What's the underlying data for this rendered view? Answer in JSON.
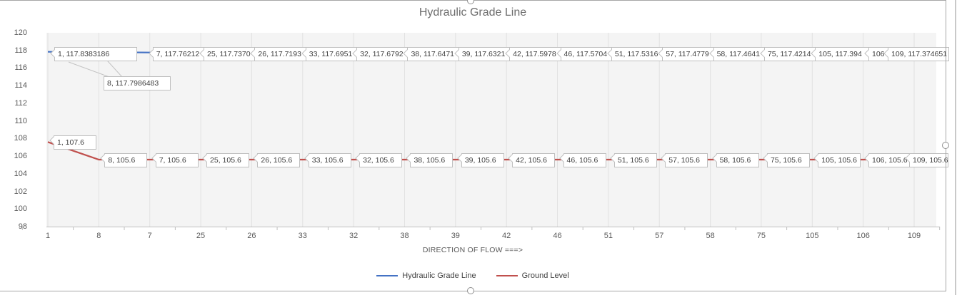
{
  "ui": {
    "selection_handles": [
      "top-center",
      "right-middle",
      "bottom-center"
    ],
    "state": "chart-object-selected"
  },
  "colors": {
    "chart_border": "#a6a6a6",
    "pane_divider": "#c9c9c9",
    "plot_fill": "#f4f4f4",
    "grid": "#e1e1e1",
    "axis": "#bfbfbf",
    "label_border": "#bfbfbf",
    "label_text": "#404040",
    "tick_text": "#595959",
    "title_text": "#6d6d6d",
    "leader": "#c4c4c4",
    "series_blue": "#4472c4",
    "series_red": "#c0504d"
  },
  "chart_data": {
    "type": "line",
    "title": "Hydraulic Grade Line",
    "xlabel": "DIRECTION OF FLOW ===>",
    "ylabel": "",
    "ylim": [
      98,
      120
    ],
    "ytick_step": 2,
    "grid": "vertical",
    "legend_position": "bottom",
    "categories": [
      "1",
      "8",
      "7",
      "25",
      "26",
      "33",
      "32",
      "38",
      "39",
      "42",
      "46",
      "51",
      "57",
      "58",
      "75",
      "105",
      "106",
      "109"
    ],
    "series": [
      {
        "name": "Hydraulic Grade Line",
        "color": "#4472c4",
        "values": [
          117.8383186,
          117.7986483,
          117.76212,
          117.737,
          117.7193,
          117.6951,
          117.6792,
          117.6471,
          117.6321,
          117.5978,
          117.5704,
          117.5316,
          117.4779,
          117.4641,
          117.4214,
          117.394,
          117.384,
          117.374651
        ],
        "data_labels": [
          "1, 117.8383186",
          "8, 117.7986483",
          "7, 117.76212",
          "25, 117.7370",
          "26, 117.7193",
          "33, 117.6951",
          "32, 117.6792",
          "38, 117.6471",
          "39, 117.6321",
          "42, 117.5978",
          "46, 117.5704",
          "51, 117.5316",
          "57, 117.4779",
          "58, 117.4641",
          "75, 117.4214",
          "105, 117.394",
          "106",
          "109, 117.374651"
        ]
      },
      {
        "name": "Ground Level",
        "color": "#c0504d",
        "values": [
          107.6,
          105.6,
          105.6,
          105.6,
          105.6,
          105.6,
          105.6,
          105.6,
          105.6,
          105.6,
          105.6,
          105.6,
          105.6,
          105.6,
          105.6,
          105.6,
          105.6,
          105.6
        ],
        "data_labels": [
          "1, 107.6",
          "8, 105.6",
          "7, 105.6",
          "25, 105.6",
          "26, 105.6",
          "33, 105.6",
          "32, 105.6",
          "38, 105.6",
          "39, 105.6",
          "42, 105.6",
          "46, 105.6",
          "51, 105.6",
          "57, 105.6",
          "58, 105.6",
          "75, 105.6",
          "105, 105.6",
          "106, 105.6",
          "109, 105.6"
        ]
      }
    ]
  }
}
